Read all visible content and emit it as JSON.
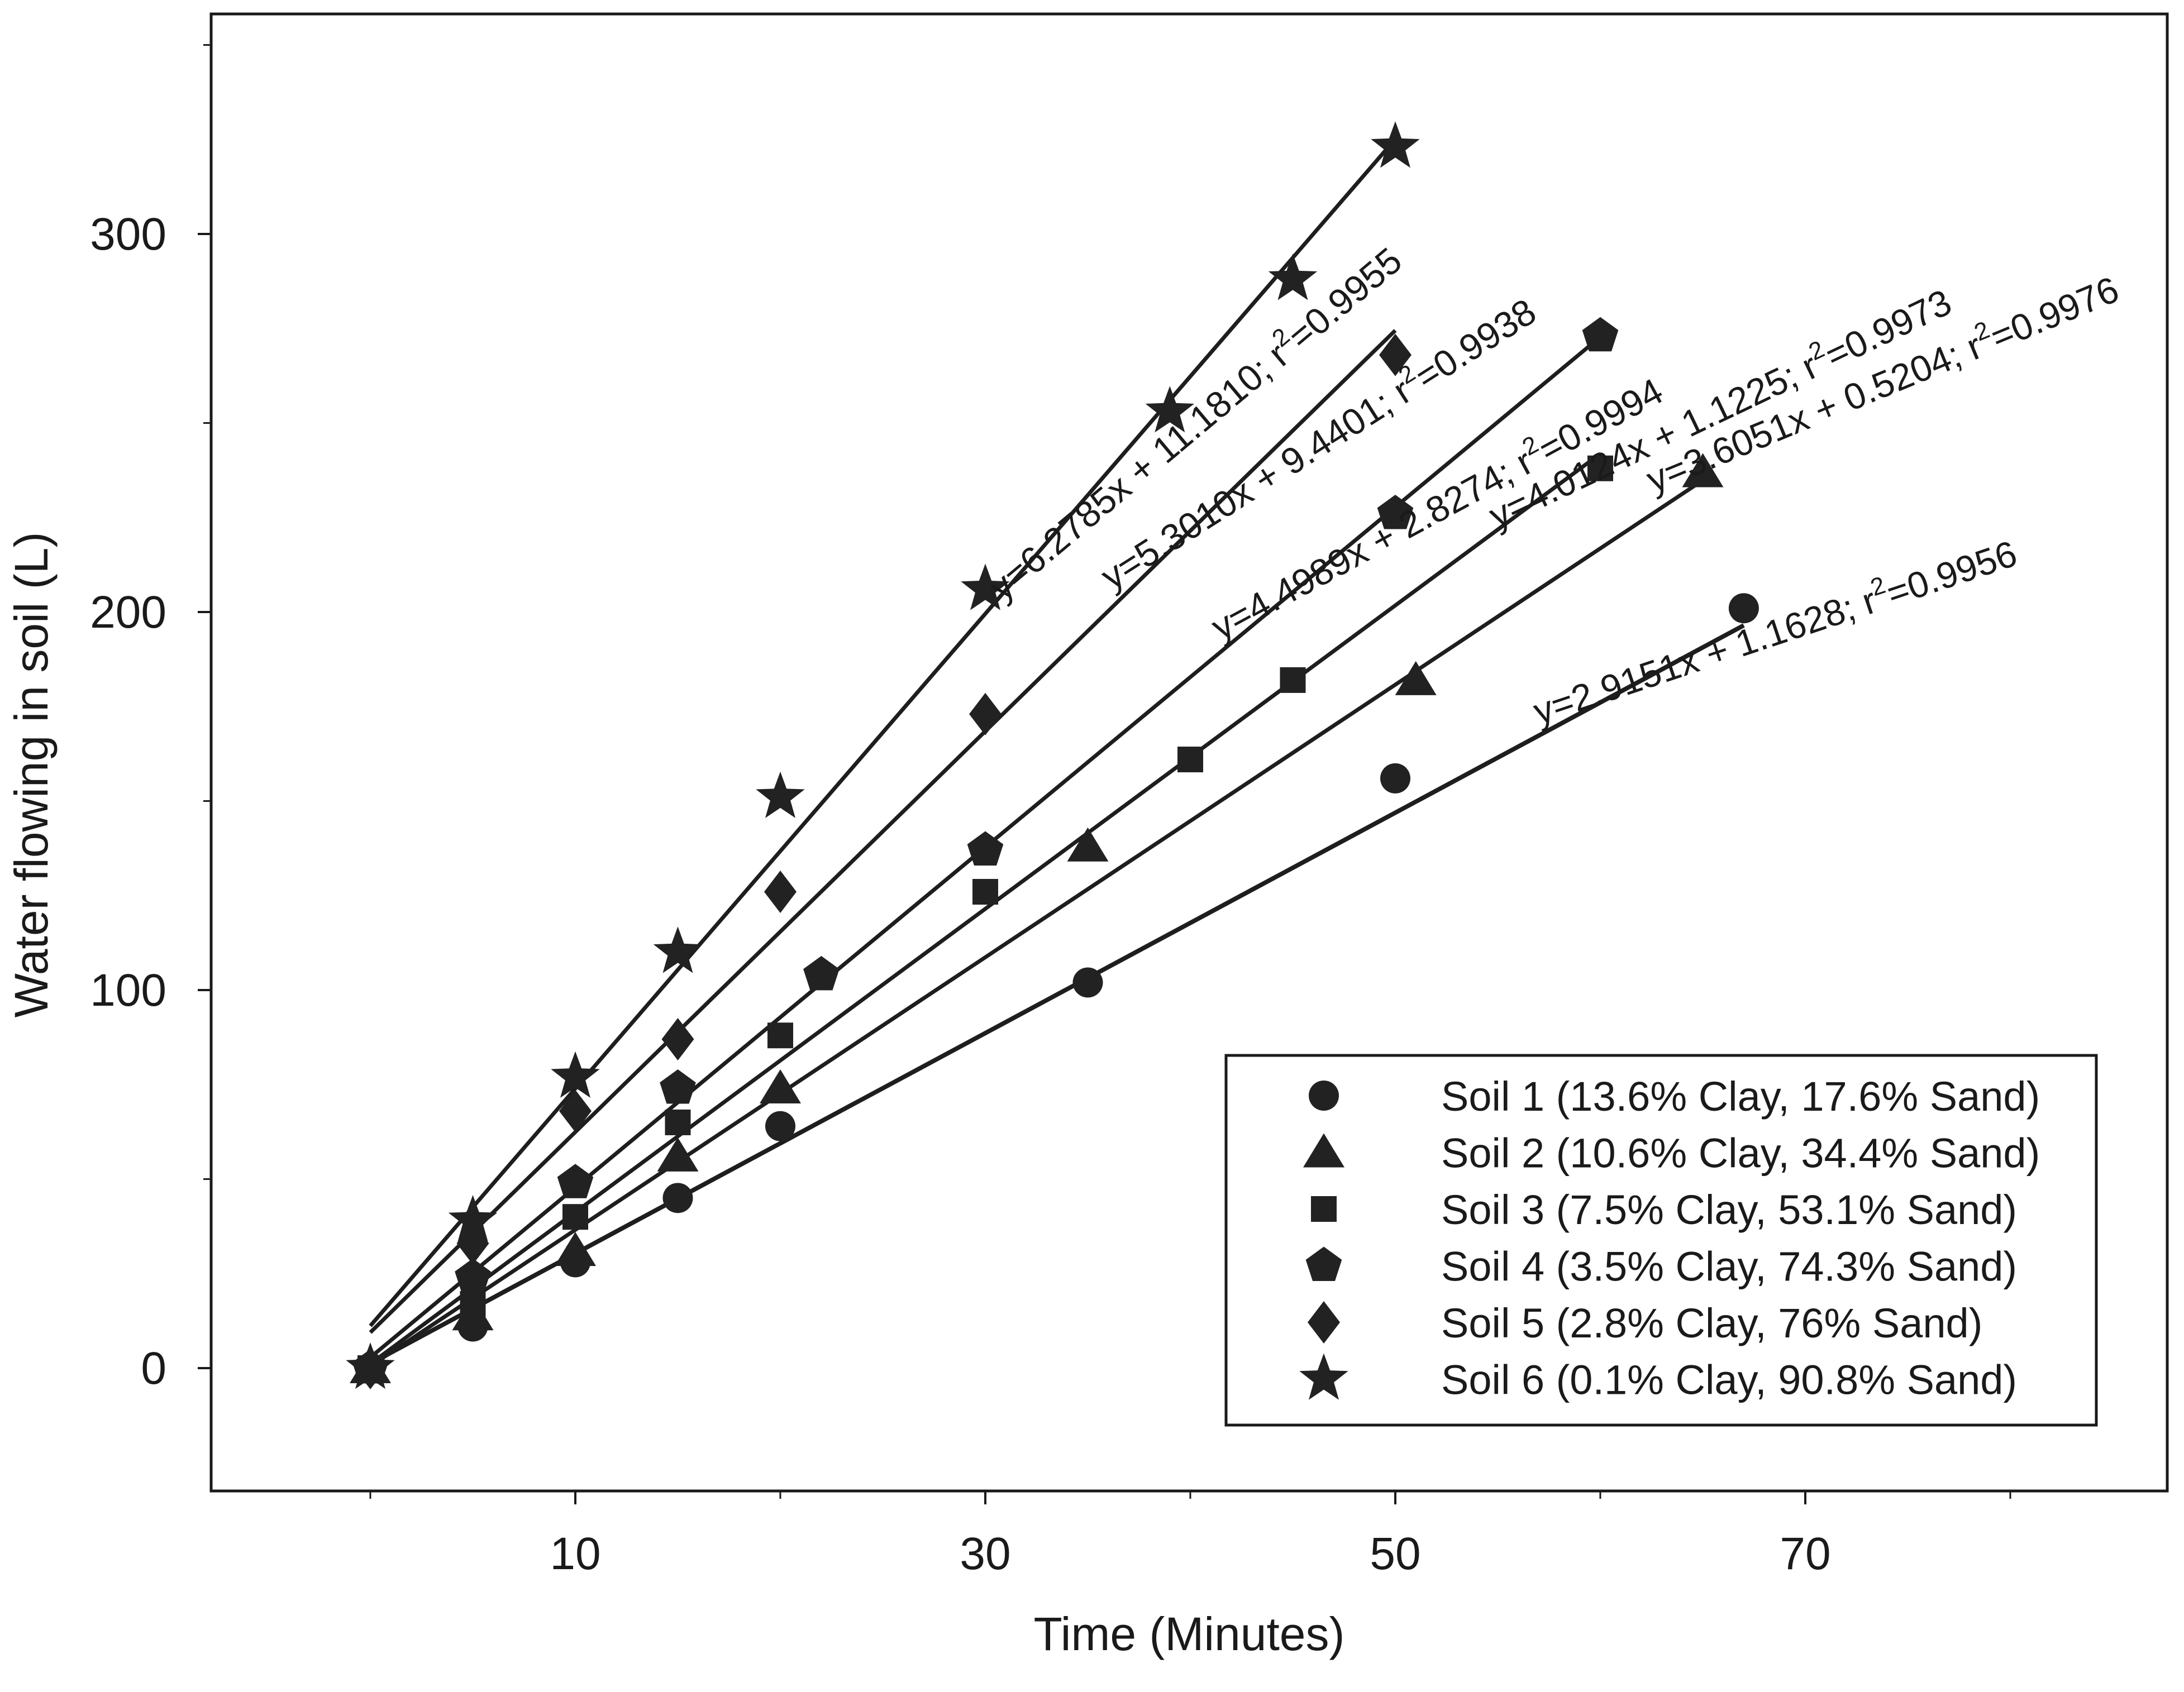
{
  "chart_data": {
    "type": "scatter",
    "title": "",
    "xlabel": "Time (Minutes)",
    "ylabel": "Water flowing in soil (L)",
    "xlim": [
      -10,
      87
    ],
    "ylim": [
      -33,
      358
    ],
    "xticks": [
      10,
      30,
      50,
      70
    ],
    "xticks_minor": [
      0,
      20,
      40,
      60,
      80
    ],
    "yticks": [
      0,
      100,
      200,
      300
    ],
    "yticks_minor": [
      -50,
      50,
      150,
      250,
      350
    ],
    "grid": false,
    "legend_position": "bottom-right",
    "series": [
      {
        "name": "Soil 1 (13.6% Clay, 17.6% Sand)",
        "marker": "circle",
        "x": [
          0,
          5,
          10,
          15,
          20,
          35,
          50,
          67
        ],
        "y": [
          0,
          11,
          28,
          45,
          64,
          102,
          156,
          201
        ],
        "fit": {
          "slope": 2.9151,
          "intercept": 1.1628,
          "x_range": [
            0,
            67
          ]
        },
        "equation": "y=2.9151x + 1.1628; r",
        "r2": "=0.9956"
      },
      {
        "name": "Soil 2 (10.6% Clay, 34.4% Sand)",
        "marker": "triangle",
        "x": [
          0,
          5,
          10,
          15,
          20,
          35,
          51,
          65
        ],
        "y": [
          0,
          14,
          31,
          56,
          74,
          138,
          182,
          237
        ],
        "fit": {
          "slope": 3.6051,
          "intercept": 0.5204,
          "x_range": [
            0,
            65
          ]
        },
        "equation": "y=3.6051x + 0.5204; r",
        "r2": "=0.9976"
      },
      {
        "name": "Soil 3 (7.5% Clay, 53.1% Sand)",
        "marker": "square",
        "x": [
          0,
          5,
          10,
          15,
          20,
          30,
          40,
          45,
          60
        ],
        "y": [
          0,
          17,
          40,
          65,
          88,
          126,
          161,
          182,
          238
        ],
        "fit": {
          "slope": 4.0124,
          "intercept": 1.1225,
          "x_range": [
            0,
            60
          ]
        },
        "equation": "y=4.0124x + 1.1225; r",
        "r2": "=0.9973"
      },
      {
        "name": "Soil 4 (3.5% Clay, 74.3% Sand)",
        "marker": "pentagon",
        "x": [
          0,
          5,
          10,
          15,
          22,
          30,
          50,
          60
        ],
        "y": [
          0,
          24,
          49,
          74,
          104,
          137,
          226,
          273
        ],
        "fit": {
          "slope": 4.4989,
          "intercept": 2.8274,
          "x_range": [
            0,
            60
          ]
        },
        "equation": "y=4.4989x + 2.8274; r",
        "r2": "=0.9994"
      },
      {
        "name": "Soil 5 (2.8% Clay, 76% Sand)",
        "marker": "diamond",
        "x": [
          0,
          5,
          10,
          15,
          20,
          30,
          50
        ],
        "y": [
          0,
          33,
          68,
          87,
          126,
          173,
          268
        ],
        "fit": {
          "slope": 5.301,
          "intercept": 9.4401,
          "x_range": [
            0,
            50
          ]
        },
        "equation": "y=5.3010x + 9.4401; r",
        "r2": "=0.9938"
      },
      {
        "name": "Soil 6 (0.1% Clay, 90.8% Sand)",
        "marker": "star",
        "x": [
          0,
          5,
          10,
          15,
          20,
          30,
          39,
          45,
          50
        ],
        "y": [
          0,
          39,
          77,
          110,
          151,
          206,
          253,
          288,
          323
        ],
        "fit": {
          "slope": 6.2785,
          "intercept": 11.181,
          "x_range": [
            0,
            50
          ]
        },
        "equation": "y=6.2785x + 11.1810; r",
        "r2": "=0.9955"
      }
    ]
  }
}
